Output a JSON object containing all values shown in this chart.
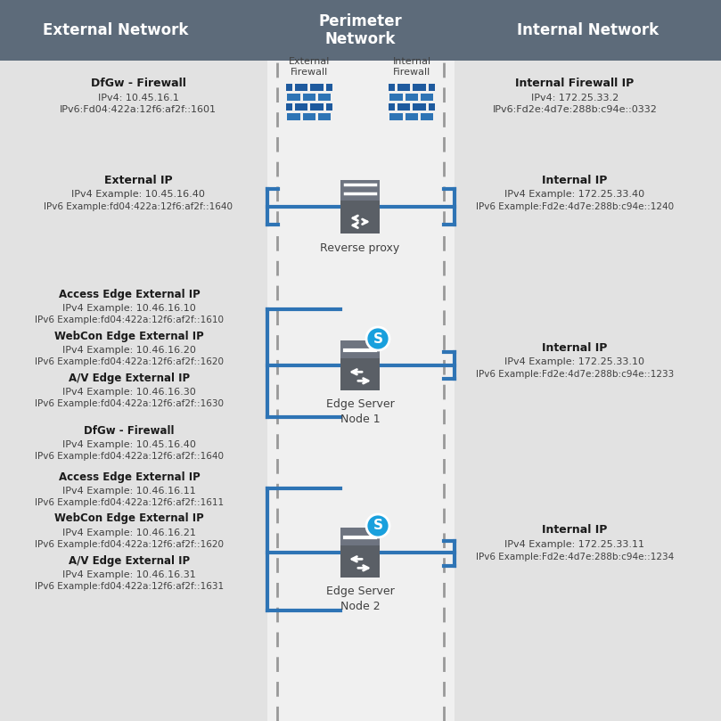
{
  "header_bg": "#5d6b7a",
  "header_text_color": "#ffffff",
  "bg_color": "#e2e2e2",
  "peri_bg_color": "#f0f0f0",
  "dashed_line_color": "#999999",
  "blue_line_color": "#2e74b5",
  "text_color": "#404040",
  "bold_text_color": "#1a1a1a",
  "ext_net_label": "External Network",
  "peri_net_label": "Perimeter\nNetwork",
  "int_net_label": "Internal Network",
  "firewall_left_label": "External\nFirewall",
  "firewall_right_label": "Internal\nFirewall",
  "dfgw_label": "DfGw - Firewall",
  "dfgw_ipv4": "IPv4: 10.45.16.1",
  "dfgw_ipv6": "IPv6:Fd04:422a:12f6:af2f::1601",
  "int_fw_ip_label": "Internal Firewall IP",
  "int_fw_ipv4": "IPv4: 172.25.33.2",
  "int_fw_ipv6": "IPv6:Fd2e:4d7e:288b:c94e::0332",
  "rp_ext_ip_label": "External IP",
  "rp_ext_ipv4": "IPv4 Example: 10.45.16.40",
  "rp_ext_ipv6": "IPv6 Example:fd04:422a:12f6:af2f::1640",
  "rp_int_ip_label": "Internal IP",
  "rp_int_ipv4": "IPv4 Example: 172.25.33.40",
  "rp_int_ipv6": "IPv6 Example:Fd2e:4d7e:288b:c94e::1240",
  "rp_label": "Reverse proxy",
  "edge1_access_label": "Access Edge External IP",
  "edge1_access_ipv4": "IPv4 Example: 10.46.16.10",
  "edge1_access_ipv6": "IPv6 Example:fd04:422a:12f6:af2f::1610",
  "edge1_webcon_label": "WebCon Edge External IP",
  "edge1_webcon_ipv4": "IPv4 Example: 10.46.16.20",
  "edge1_webcon_ipv6": "IPv6 Example:fd04:422a:12f6:af2f::1620",
  "edge1_av_label": "A/V Edge External IP",
  "edge1_av_ipv4": "IPv4 Example: 10.46.16.30",
  "edge1_av_ipv6": "IPv6 Example:fd04:422a:12f6:af2f::1630",
  "edge1_int_label": "Internal IP",
  "edge1_int_ipv4": "IPv4 Example: 172.25.33.10",
  "edge1_int_ipv6": "IPv6 Example:Fd2e:4d7e:288b:c94e::1233",
  "edge1_label": "Edge Server\nNode 1",
  "dfgw2_label": "DfGw - Firewall",
  "dfgw2_ipv4": "IPv4 Example: 10.45.16.40",
  "dfgw2_ipv6": "IPv6 Example:fd04:422a:12f6:af2f::1640",
  "edge2_access_label": "Access Edge External IP",
  "edge2_access_ipv4": "IPv4 Example: 10.46.16.11",
  "edge2_access_ipv6": "IPv6 Example:fd04:422a:12f6:af2f::1611",
  "edge2_webcon_label": "WebCon Edge External IP",
  "edge2_webcon_ipv4": "IPv4 Example: 10.46.16.21",
  "edge2_webcon_ipv6": "IPv6 Example:fd04:422a:12f6:af2f::1620",
  "edge2_av_label": "A/V Edge External IP",
  "edge2_av_ipv4": "IPv4 Example: 10.46.16.31",
  "edge2_av_ipv6": "IPv6 Example:fd04:422a:12f6:af2f::1631",
  "edge2_int_label": "Internal IP",
  "edge2_int_ipv4": "IPv4 Example: 172.25.33.11",
  "edge2_int_ipv6": "IPv6 Example:Fd2e:4d7e:288b:c94e::1234",
  "edge2_label": "Edge Server\nNode 2"
}
